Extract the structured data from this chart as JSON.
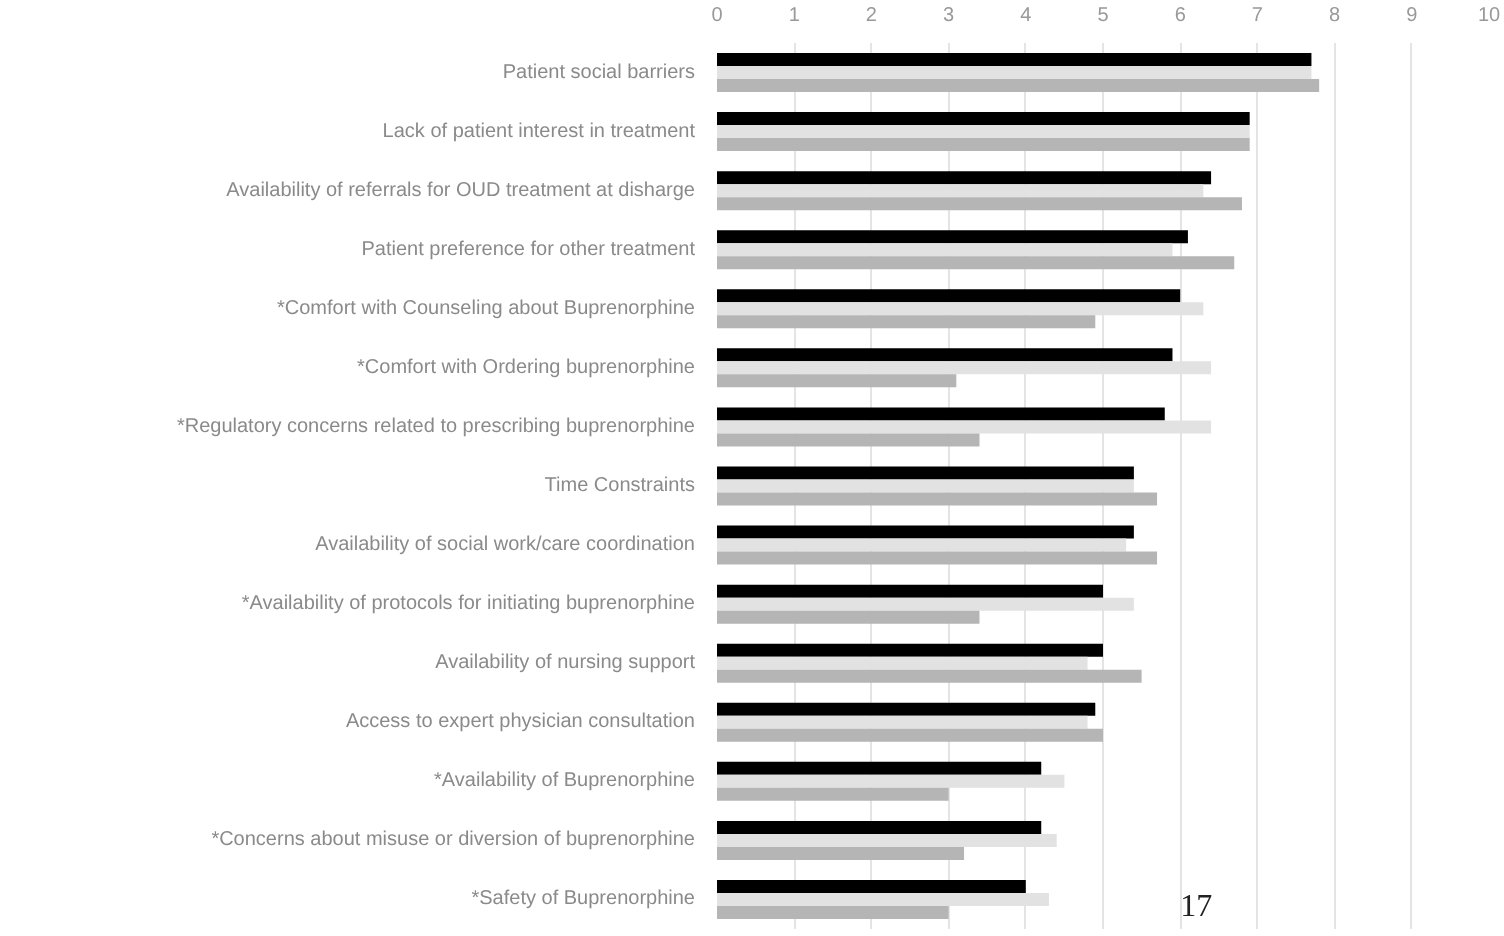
{
  "chart_data": {
    "type": "bar",
    "orientation": "horizontal",
    "categories": [
      "Patient social barriers",
      "Lack of patient interest in treatment",
      "Availability of referrals for OUD treatment at disharge",
      "Patient preference for other treatment",
      "*Comfort with Counseling about Buprenorphine",
      "*Comfort with Ordering buprenorphine",
      "*Regulatory concerns related to prescribing buprenorphine",
      "Time Constraints",
      "Availability of social work/care coordination",
      "*Availability of protocols for initiating buprenorphine",
      "Availability of nursing support",
      "Access to expert physician consultation",
      "*Availability of Buprenorphine",
      "*Concerns about misuse or diversion of buprenorphine",
      "*Safety of Buprenorphine"
    ],
    "series": [
      {
        "color": "#000000",
        "values": [
          7.7,
          6.9,
          6.4,
          6.1,
          6.0,
          5.9,
          5.8,
          5.4,
          5.4,
          5.0,
          5.0,
          4.9,
          4.2,
          4.2,
          4.0
        ]
      },
      {
        "color": "#e2e2e2",
        "values": [
          7.7,
          6.9,
          6.3,
          5.9,
          6.3,
          6.4,
          6.4,
          5.4,
          5.3,
          5.4,
          4.8,
          4.8,
          4.5,
          4.4,
          4.3
        ]
      },
      {
        "color": "#b5b5b5",
        "values": [
          7.8,
          6.9,
          6.8,
          6.7,
          4.9,
          3.1,
          3.4,
          5.7,
          5.7,
          3.4,
          5.5,
          5.0,
          3.0,
          3.2,
          3.0
        ]
      }
    ],
    "xlim": [
      0,
      10
    ],
    "xticks": [
      0,
      1,
      2,
      3,
      4,
      5,
      6,
      7,
      8,
      9,
      10
    ],
    "grid": "x",
    "annotations": [
      "17"
    ]
  }
}
